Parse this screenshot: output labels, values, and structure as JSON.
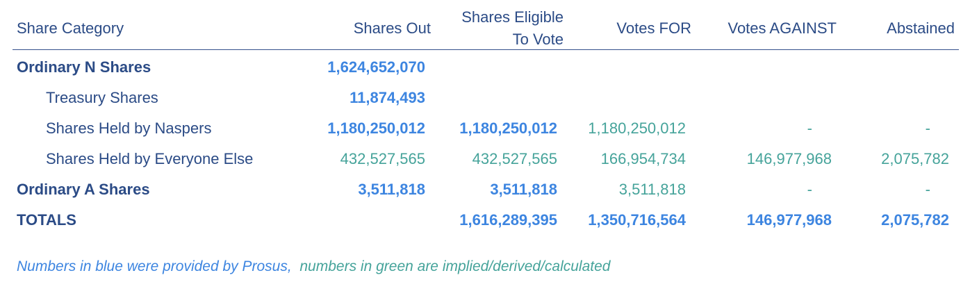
{
  "header": {
    "category": "Share Category",
    "shares_out": "Shares Out",
    "eligible_line1": "Shares Eligible",
    "eligible_line2": "To Vote",
    "votes_for": "Votes FOR",
    "votes_against": "Votes AGAINST",
    "abstained": "Abstained"
  },
  "rows": [
    {
      "label": "Ordinary N Shares",
      "shares_out": "1,624,652,070",
      "eligible": "",
      "votes_for": "",
      "votes_against": "",
      "abstained": ""
    },
    {
      "label": "Treasury Shares",
      "shares_out": "11,874,493",
      "eligible": "",
      "votes_for": "",
      "votes_against": "",
      "abstained": ""
    },
    {
      "label": "Shares Held by Naspers",
      "shares_out": "1,180,250,012",
      "eligible": "1,180,250,012",
      "votes_for": "1,180,250,012",
      "votes_against": "-",
      "abstained": "-"
    },
    {
      "label": "Shares Held by Everyone Else",
      "shares_out": "432,527,565",
      "eligible": "432,527,565",
      "votes_for": "166,954,734",
      "votes_against": "146,977,968",
      "abstained": "2,075,782"
    },
    {
      "label": "Ordinary A Shares",
      "shares_out": "3,511,818",
      "eligible": "3,511,818",
      "votes_for": "3,511,818",
      "votes_against": "-",
      "abstained": "-"
    },
    {
      "label": "TOTALS",
      "shares_out": "",
      "eligible": "1,616,289,395",
      "votes_for": "1,350,716,564",
      "votes_against": "146,977,968",
      "abstained": "2,075,782"
    }
  ],
  "footnote": {
    "blue_part": "Numbers in blue were provided by Prosus,",
    "green_part": "numbers in green are implied/derived/calculated"
  },
  "colors": {
    "label_navy": "#2b4b86",
    "provided_blue": "#3d85e0",
    "derived_green": "#45a39a"
  }
}
